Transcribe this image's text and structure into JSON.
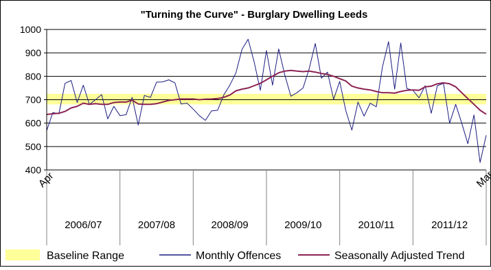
{
  "chart_data": {
    "type": "line",
    "title": "\"Turning the Curve\" - Burglary Dwelling Leeds",
    "xlabel": "",
    "ylabel": "",
    "ylim": [
      400,
      1000
    ],
    "y_ticks": [
      400,
      500,
      600,
      700,
      800,
      900,
      1000
    ],
    "grid": "horizontal",
    "legend_position": "bottom",
    "x_start_label": "Apr",
    "x_end_label": "Mar",
    "periods": [
      "2006/07",
      "2007/08",
      "2008/09",
      "2009/10",
      "2010/11",
      "2011/12"
    ],
    "baseline_range": {
      "name": "Baseline Range",
      "low": 680,
      "high": 725,
      "color": "#ffff99"
    },
    "series": [
      {
        "name": "Monthly Offences",
        "color": "#1a1a80",
        "values": [
          568,
          645,
          640,
          770,
          782,
          688,
          762,
          680,
          700,
          722,
          618,
          672,
          632,
          636,
          710,
          592,
          718,
          710,
          775,
          776,
          785,
          772,
          682,
          685,
          660,
          632,
          612,
          652,
          655,
          720,
          762,
          815,
          915,
          958,
          860,
          740,
          910,
          762,
          917,
          806,
          715,
          730,
          750,
          832,
          940,
          792,
          818,
          702,
          778,
          653,
          570,
          690,
          630,
          685,
          670,
          840,
          948,
          745,
          942,
          748,
          740,
          708,
          760,
          642,
          760,
          770,
          600,
          680,
          600,
          512,
          635,
          432,
          548
        ]
      },
      {
        "name": "Seasonally Adjusted Trend",
        "color": "#8b2252",
        "values": [
          637,
          640,
          642,
          650,
          665,
          672,
          685,
          680,
          683,
          680,
          680,
          688,
          690,
          690,
          698,
          682,
          680,
          680,
          683,
          690,
          697,
          700,
          703,
          703,
          703,
          700,
          702,
          703,
          705,
          710,
          720,
          738,
          745,
          750,
          760,
          770,
          785,
          800,
          815,
          822,
          825,
          822,
          820,
          822,
          818,
          812,
          808,
          800,
          790,
          780,
          758,
          750,
          745,
          742,
          735,
          730,
          730,
          728,
          735,
          740,
          742,
          740,
          755,
          758,
          768,
          772,
          768,
          755,
          730,
          705,
          680,
          655,
          638
        ]
      }
    ]
  }
}
